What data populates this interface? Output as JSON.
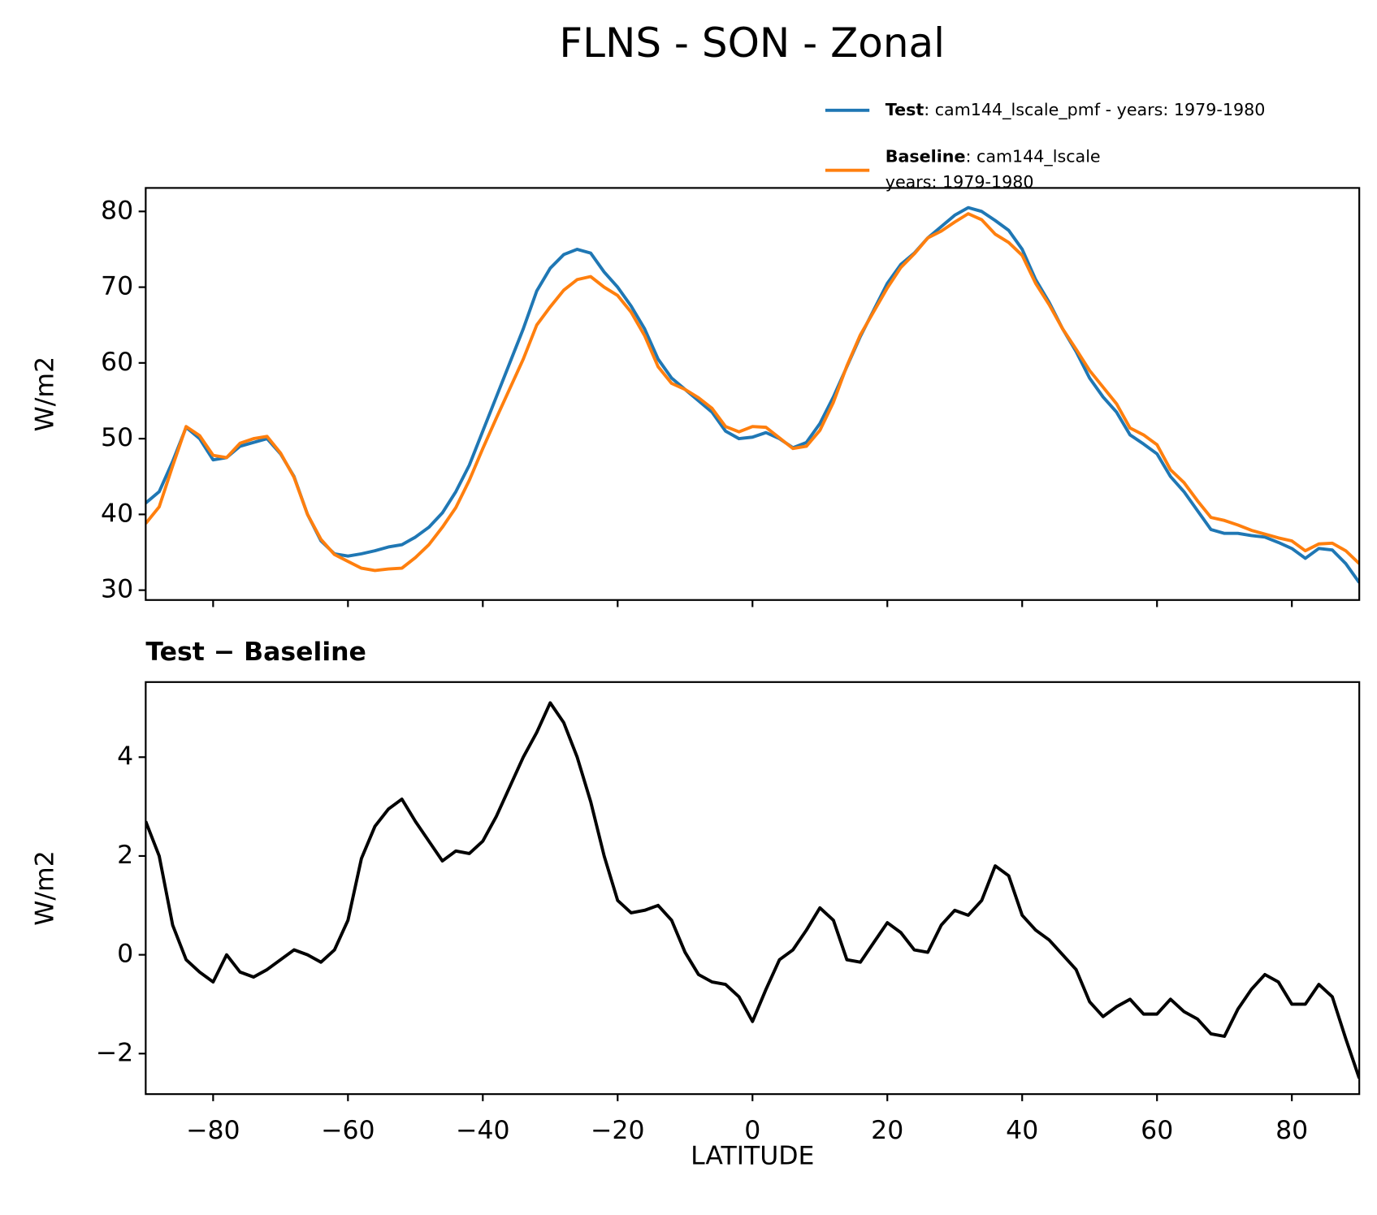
{
  "chart_data": [
    {
      "type": "line",
      "title": "FLNS - SON - Zonal",
      "ylabel": "W/m2",
      "x": [
        -90,
        -88,
        -86,
        -84,
        -82,
        -80,
        -78,
        -76,
        -74,
        -72,
        -70,
        -68,
        -66,
        -64,
        -62,
        -60,
        -58,
        -56,
        -54,
        -52,
        -50,
        -48,
        -46,
        -44,
        -42,
        -40,
        -38,
        -36,
        -34,
        -32,
        -30,
        -28,
        -26,
        -24,
        -22,
        -20,
        -18,
        -16,
        -14,
        -12,
        -10,
        -8,
        -6,
        -4,
        -2,
        0,
        2,
        4,
        6,
        8,
        10,
        12,
        14,
        16,
        18,
        20,
        22,
        24,
        26,
        28,
        30,
        32,
        34,
        36,
        38,
        40,
        42,
        44,
        46,
        48,
        50,
        52,
        54,
        56,
        58,
        60,
        62,
        64,
        66,
        68,
        70,
        72,
        74,
        76,
        78,
        80,
        82,
        84,
        86,
        88,
        90
      ],
      "series": [
        {
          "name": "Test",
          "legend_text": [
            ": cam144_lscale_pmf - years: 1979-1980"
          ],
          "color": "#1f77b4",
          "values": [
            41.5,
            43,
            47,
            51.5,
            50,
            47.2,
            47.5,
            49,
            49.5,
            50,
            48,
            45,
            40,
            36.5,
            34.8,
            34.5,
            34.8,
            35.2,
            35.7,
            36,
            37,
            38.3,
            40.2,
            43,
            46.5,
            51,
            55.5,
            60,
            64.5,
            69.5,
            72.5,
            74.3,
            75,
            74.5,
            72,
            70,
            67.5,
            64.5,
            60.5,
            58,
            56.5,
            55,
            53.5,
            51,
            50,
            50.2,
            50.8,
            50,
            48.8,
            49.5,
            52,
            55.5,
            59.5,
            63.5,
            67,
            70.5,
            73,
            74.5,
            76.5,
            78,
            79.5,
            80.5,
            80,
            78.8,
            77.5,
            75,
            71,
            68,
            64.5,
            61.5,
            58,
            55.5,
            53.5,
            50.5,
            49.3,
            48,
            45,
            43,
            40.5,
            38,
            37.5,
            37.5,
            37.2,
            37,
            36.3,
            35.5,
            34.2,
            35.5,
            35.3,
            33.5,
            31
          ]
        },
        {
          "name": "Baseline",
          "legend_text": [
            ": cam144_lscale",
            "years: 1979-1980"
          ],
          "color": "#ff7f0e",
          "values": [
            38.8,
            41,
            46.4,
            51.6,
            50.4,
            47.8,
            47.5,
            49.4,
            50,
            50.3,
            48.1,
            44.9,
            40,
            36.7,
            34.7,
            33.8,
            32.9,
            32.6,
            32.8,
            32.9,
            34.3,
            36,
            38.3,
            40.9,
            44.5,
            48.7,
            52.7,
            56.6,
            60.5,
            65,
            67.4,
            69.6,
            71,
            71.4,
            70,
            68.9,
            66.7,
            63.6,
            59.5,
            57.3,
            56.5,
            55.4,
            54,
            51.6,
            50.9,
            51.6,
            51.5,
            50.1,
            48.7,
            49,
            51.1,
            54.8,
            59.6,
            63.7,
            66.8,
            69.9,
            72.6,
            74.4,
            76.5,
            77.4,
            78.6,
            79.7,
            78.9,
            77,
            75.9,
            74.2,
            70.5,
            67.7,
            64.5,
            61.8,
            59,
            56.8,
            54.6,
            51.4,
            50.5,
            49.2,
            45.9,
            44.2,
            41.8,
            39.6,
            39.2,
            38.6,
            37.9,
            37.4,
            36.9,
            36.5,
            35.2,
            36.1,
            36.2,
            35.2,
            33.5
          ]
        }
      ],
      "xlim": [
        -90,
        90
      ],
      "xticks": [
        -80,
        -60,
        -40,
        -20,
        0,
        20,
        40,
        60,
        80
      ],
      "ylim": [
        28.7,
        83.1
      ],
      "yticks": [
        30,
        40,
        50,
        60,
        70,
        80
      ]
    },
    {
      "type": "line",
      "subtitle": "Test − Baseline",
      "ylabel": "W/m2",
      "xlabel": "LATITUDE",
      "x": [
        -90,
        -88,
        -86,
        -84,
        -82,
        -80,
        -78,
        -76,
        -74,
        -72,
        -70,
        -68,
        -66,
        -64,
        -62,
        -60,
        -58,
        -56,
        -54,
        -52,
        -50,
        -48,
        -46,
        -44,
        -42,
        -40,
        -38,
        -36,
        -34,
        -32,
        -30,
        -28,
        -26,
        -24,
        -22,
        -20,
        -18,
        -16,
        -14,
        -12,
        -10,
        -8,
        -6,
        -4,
        -2,
        0,
        2,
        4,
        6,
        8,
        10,
        12,
        14,
        16,
        18,
        20,
        22,
        24,
        26,
        28,
        30,
        32,
        34,
        36,
        38,
        40,
        42,
        44,
        46,
        48,
        50,
        52,
        54,
        56,
        58,
        60,
        62,
        64,
        66,
        68,
        70,
        72,
        74,
        76,
        78,
        80,
        82,
        84,
        86,
        88,
        90
      ],
      "series": [
        {
          "color": "#000000",
          "values": [
            2.7,
            2.0,
            0.6,
            -0.1,
            -0.35,
            -0.55,
            0.0,
            -0.35,
            -0.45,
            -0.3,
            -0.1,
            0.1,
            0.0,
            -0.15,
            0.1,
            0.7,
            1.95,
            2.6,
            2.95,
            3.15,
            2.7,
            2.3,
            1.9,
            2.1,
            2.05,
            2.3,
            2.8,
            3.4,
            4.0,
            4.5,
            5.1,
            4.7,
            4.0,
            3.1,
            2.0,
            1.1,
            0.85,
            0.9,
            1.0,
            0.7,
            0.05,
            -0.4,
            -0.55,
            -0.6,
            -0.85,
            -1.35,
            -0.7,
            -0.1,
            0.1,
            0.5,
            0.95,
            0.7,
            -0.1,
            -0.15,
            0.25,
            0.65,
            0.45,
            0.1,
            0.05,
            0.6,
            0.9,
            0.8,
            1.1,
            1.8,
            1.6,
            0.8,
            0.5,
            0.3,
            0.0,
            -0.3,
            -0.95,
            -1.25,
            -1.05,
            -0.9,
            -1.2,
            -1.2,
            -0.9,
            -1.15,
            -1.3,
            -1.6,
            -1.65,
            -1.1,
            -0.7,
            -0.4,
            -0.55,
            -1.0,
            -1.0,
            -0.6,
            -0.85,
            -1.7,
            -2.5
          ]
        }
      ],
      "xlim": [
        -90,
        90
      ],
      "xticks": [
        {
          "value": -80,
          "label": "−80"
        },
        {
          "value": -60,
          "label": "−60"
        },
        {
          "value": -40,
          "label": "−40"
        },
        {
          "value": -20,
          "label": "−20"
        },
        0,
        20,
        40,
        60,
        80
      ],
      "ylim": [
        -2.82,
        5.52
      ],
      "yticks": [
        {
          "value": -2,
          "label": "−2"
        },
        0,
        2,
        4
      ]
    }
  ]
}
